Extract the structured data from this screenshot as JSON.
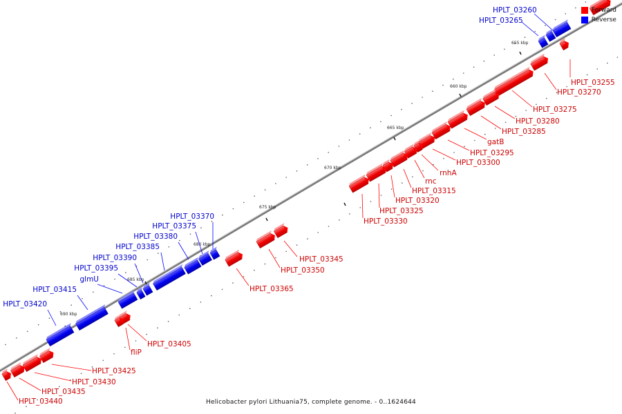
{
  "caption": "Helicobacter pylori Lithuania75, complete genome. - 0..1624644",
  "legend": {
    "forward": {
      "label": "Forward",
      "color": "#ff0000"
    },
    "reverse": {
      "label": "Reverse",
      "color": "#0000ff"
    }
  },
  "tick_labels": [
    "655 kbp",
    "660 kbp",
    "665 kbp",
    "670 kbp",
    "675 kbp",
    "680 kbp",
    "685 kbp",
    "690 kbp"
  ],
  "genes": [
    {
      "label": "HPLT_03255",
      "strand": "forward"
    },
    {
      "label": "HPLT_03260",
      "strand": "reverse"
    },
    {
      "label": "HPLT_03265",
      "strand": "reverse"
    },
    {
      "label": "HPLT_03270",
      "strand": "forward"
    },
    {
      "label": "HPLT_03275",
      "strand": "forward"
    },
    {
      "label": "HPLT_03280",
      "strand": "forward"
    },
    {
      "label": "HPLT_03285",
      "strand": "forward"
    },
    {
      "label": "gatB",
      "strand": "forward"
    },
    {
      "label": "HPLT_03295",
      "strand": "forward"
    },
    {
      "label": "HPLT_03300",
      "strand": "forward"
    },
    {
      "label": "rnhA",
      "strand": "forward"
    },
    {
      "label": "rnc",
      "strand": "forward"
    },
    {
      "label": "HPLT_03315",
      "strand": "forward"
    },
    {
      "label": "HPLT_03320",
      "strand": "forward"
    },
    {
      "label": "HPLT_03325",
      "strand": "forward"
    },
    {
      "label": "HPLT_03330",
      "strand": "forward"
    },
    {
      "label": "HPLT_03345",
      "strand": "forward"
    },
    {
      "label": "HPLT_03350",
      "strand": "forward"
    },
    {
      "label": "HPLT_03365",
      "strand": "forward"
    },
    {
      "label": "HPLT_03370",
      "strand": "reverse"
    },
    {
      "label": "HPLT_03375",
      "strand": "reverse"
    },
    {
      "label": "HPLT_03380",
      "strand": "reverse"
    },
    {
      "label": "HPLT_03385",
      "strand": "reverse"
    },
    {
      "label": "HPLT_03390",
      "strand": "reverse"
    },
    {
      "label": "HPLT_03395",
      "strand": "reverse"
    },
    {
      "label": "glmU",
      "strand": "reverse"
    },
    {
      "label": "HPLT_03405",
      "strand": "forward"
    },
    {
      "label": "fliP",
      "strand": "forward"
    },
    {
      "label": "HPLT_03415",
      "strand": "reverse"
    },
    {
      "label": "HPLT_03420",
      "strand": "reverse"
    },
    {
      "label": "HPLT_03425",
      "strand": "forward"
    },
    {
      "label": "HPLT_03430",
      "strand": "forward"
    },
    {
      "label": "HPLT_03435",
      "strand": "forward"
    },
    {
      "label": "HPLT_03440",
      "strand": "forward"
    }
  ]
}
